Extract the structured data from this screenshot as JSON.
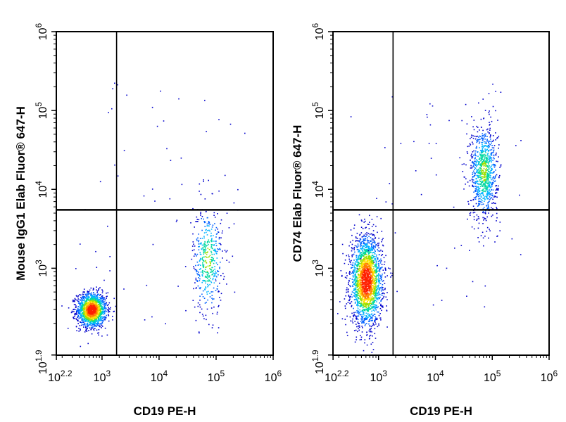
{
  "chart_data": [
    {
      "type": "scatter",
      "subtype": "flow-cytometry-density-dot-plot",
      "xlabel": "CD19 PE-H",
      "ylabel": "Mouse IgG1 Elab Fluor® 647-H",
      "xscale": "log",
      "yscale": "log",
      "xlim": [
        158,
        1000000
      ],
      "ylim": [
        79,
        1000000
      ],
      "x_ticks": [
        "10^2.2",
        "10^3",
        "10^4",
        "10^5",
        "10^6"
      ],
      "y_ticks": [
        "10^1.9",
        "10^3",
        "10^4",
        "10^5",
        "10^6"
      ],
      "gate": {
        "x": 1800,
        "y": 5500
      },
      "populations": [
        {
          "name": "",
          "center": [
            650,
            300
          ],
          "log_spread": [
            0.13,
            0.11
          ],
          "count": 1500,
          "quadrant": "lower-left"
        },
        {
          "name": "",
          "center": [
            70000,
            1300
          ],
          "log_spread": [
            0.13,
            0.35
          ],
          "count": 450,
          "quadrant": "lower-right"
        }
      ],
      "color_scale": [
        "#0000cc",
        "#00a0ff",
        "#00d8a0",
        "#ffe000",
        "#ff2000"
      ]
    },
    {
      "type": "scatter",
      "subtype": "flow-cytometry-density-dot-plot",
      "xlabel": "CD19 PE-H",
      "ylabel": "CD74 Elab Fluor® 647-H",
      "xscale": "log",
      "yscale": "log",
      "xlim": [
        158,
        1000000
      ],
      "ylim": [
        79,
        1000000
      ],
      "x_ticks": [
        "10^2.2",
        "10^3",
        "10^4",
        "10^5",
        "10^6"
      ],
      "y_ticks": [
        "10^1.9",
        "10^3",
        "10^4",
        "10^5",
        "10^6"
      ],
      "gate": {
        "x": 1800,
        "y": 5500
      },
      "populations": [
        {
          "name": "",
          "center": [
            600,
            700
          ],
          "log_spread": [
            0.14,
            0.28
          ],
          "count": 2200,
          "quadrant": "lower-left"
        },
        {
          "name": "",
          "center": [
            70000,
            17000
          ],
          "log_spread": [
            0.12,
            0.3
          ],
          "count": 900,
          "quadrant": "upper-right"
        }
      ],
      "color_scale": [
        "#0000cc",
        "#00a0ff",
        "#00d8a0",
        "#ffe000",
        "#ff2000"
      ]
    }
  ]
}
